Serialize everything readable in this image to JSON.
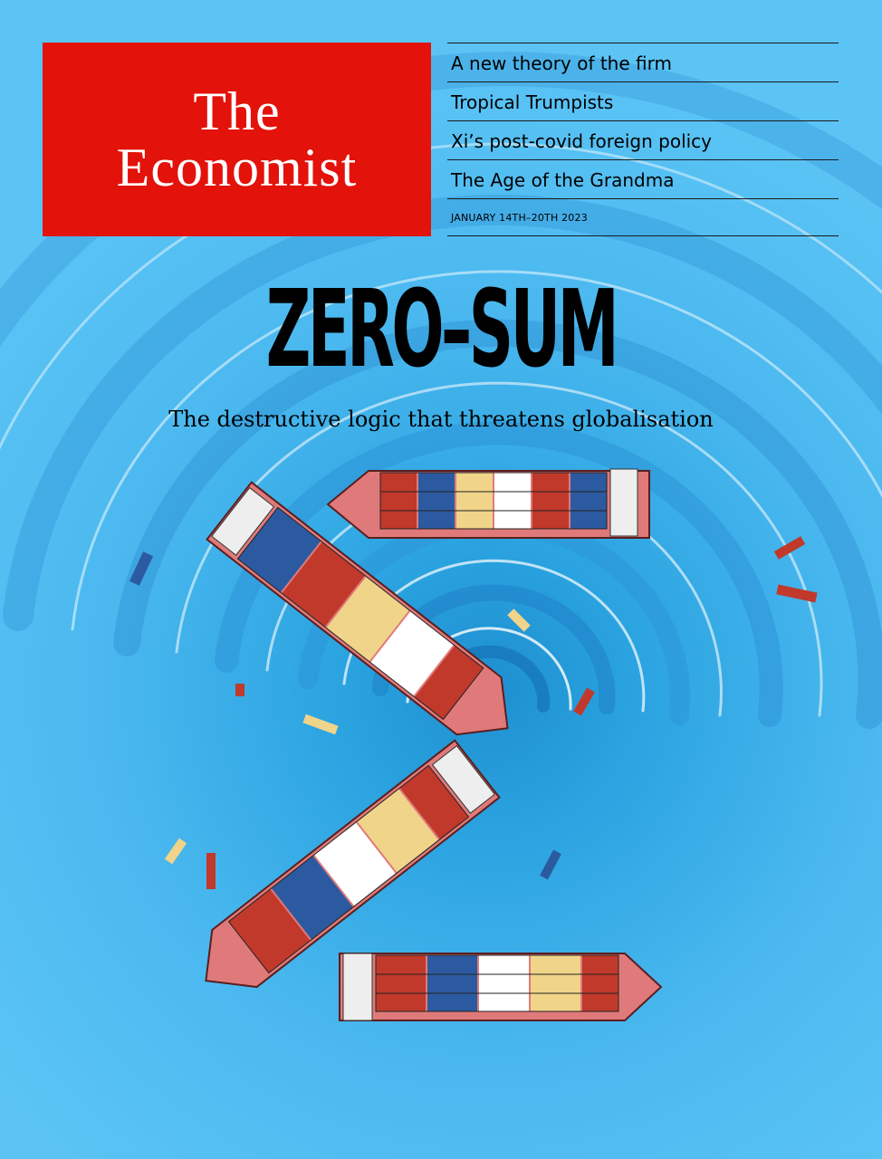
{
  "masthead": {
    "line1": "The",
    "line2": "Economist"
  },
  "coverlines": [
    "A new theory of the firm",
    "Tropical Trumpists",
    "Xi’s post-covid foreign policy",
    "The Age of the Grandma"
  ],
  "issue_date": "JANUARY 14TH–20TH 2023",
  "headline": "ZERO–SUM",
  "subheadline": "The destructive logic that threatens globalisation",
  "illustration": {
    "subject": "container ships arranged in a Z shape in a whirlpool",
    "colors": {
      "water": "#4ab8ef",
      "hull": "#e07a7a",
      "masthead_red": "#e3120b"
    }
  }
}
